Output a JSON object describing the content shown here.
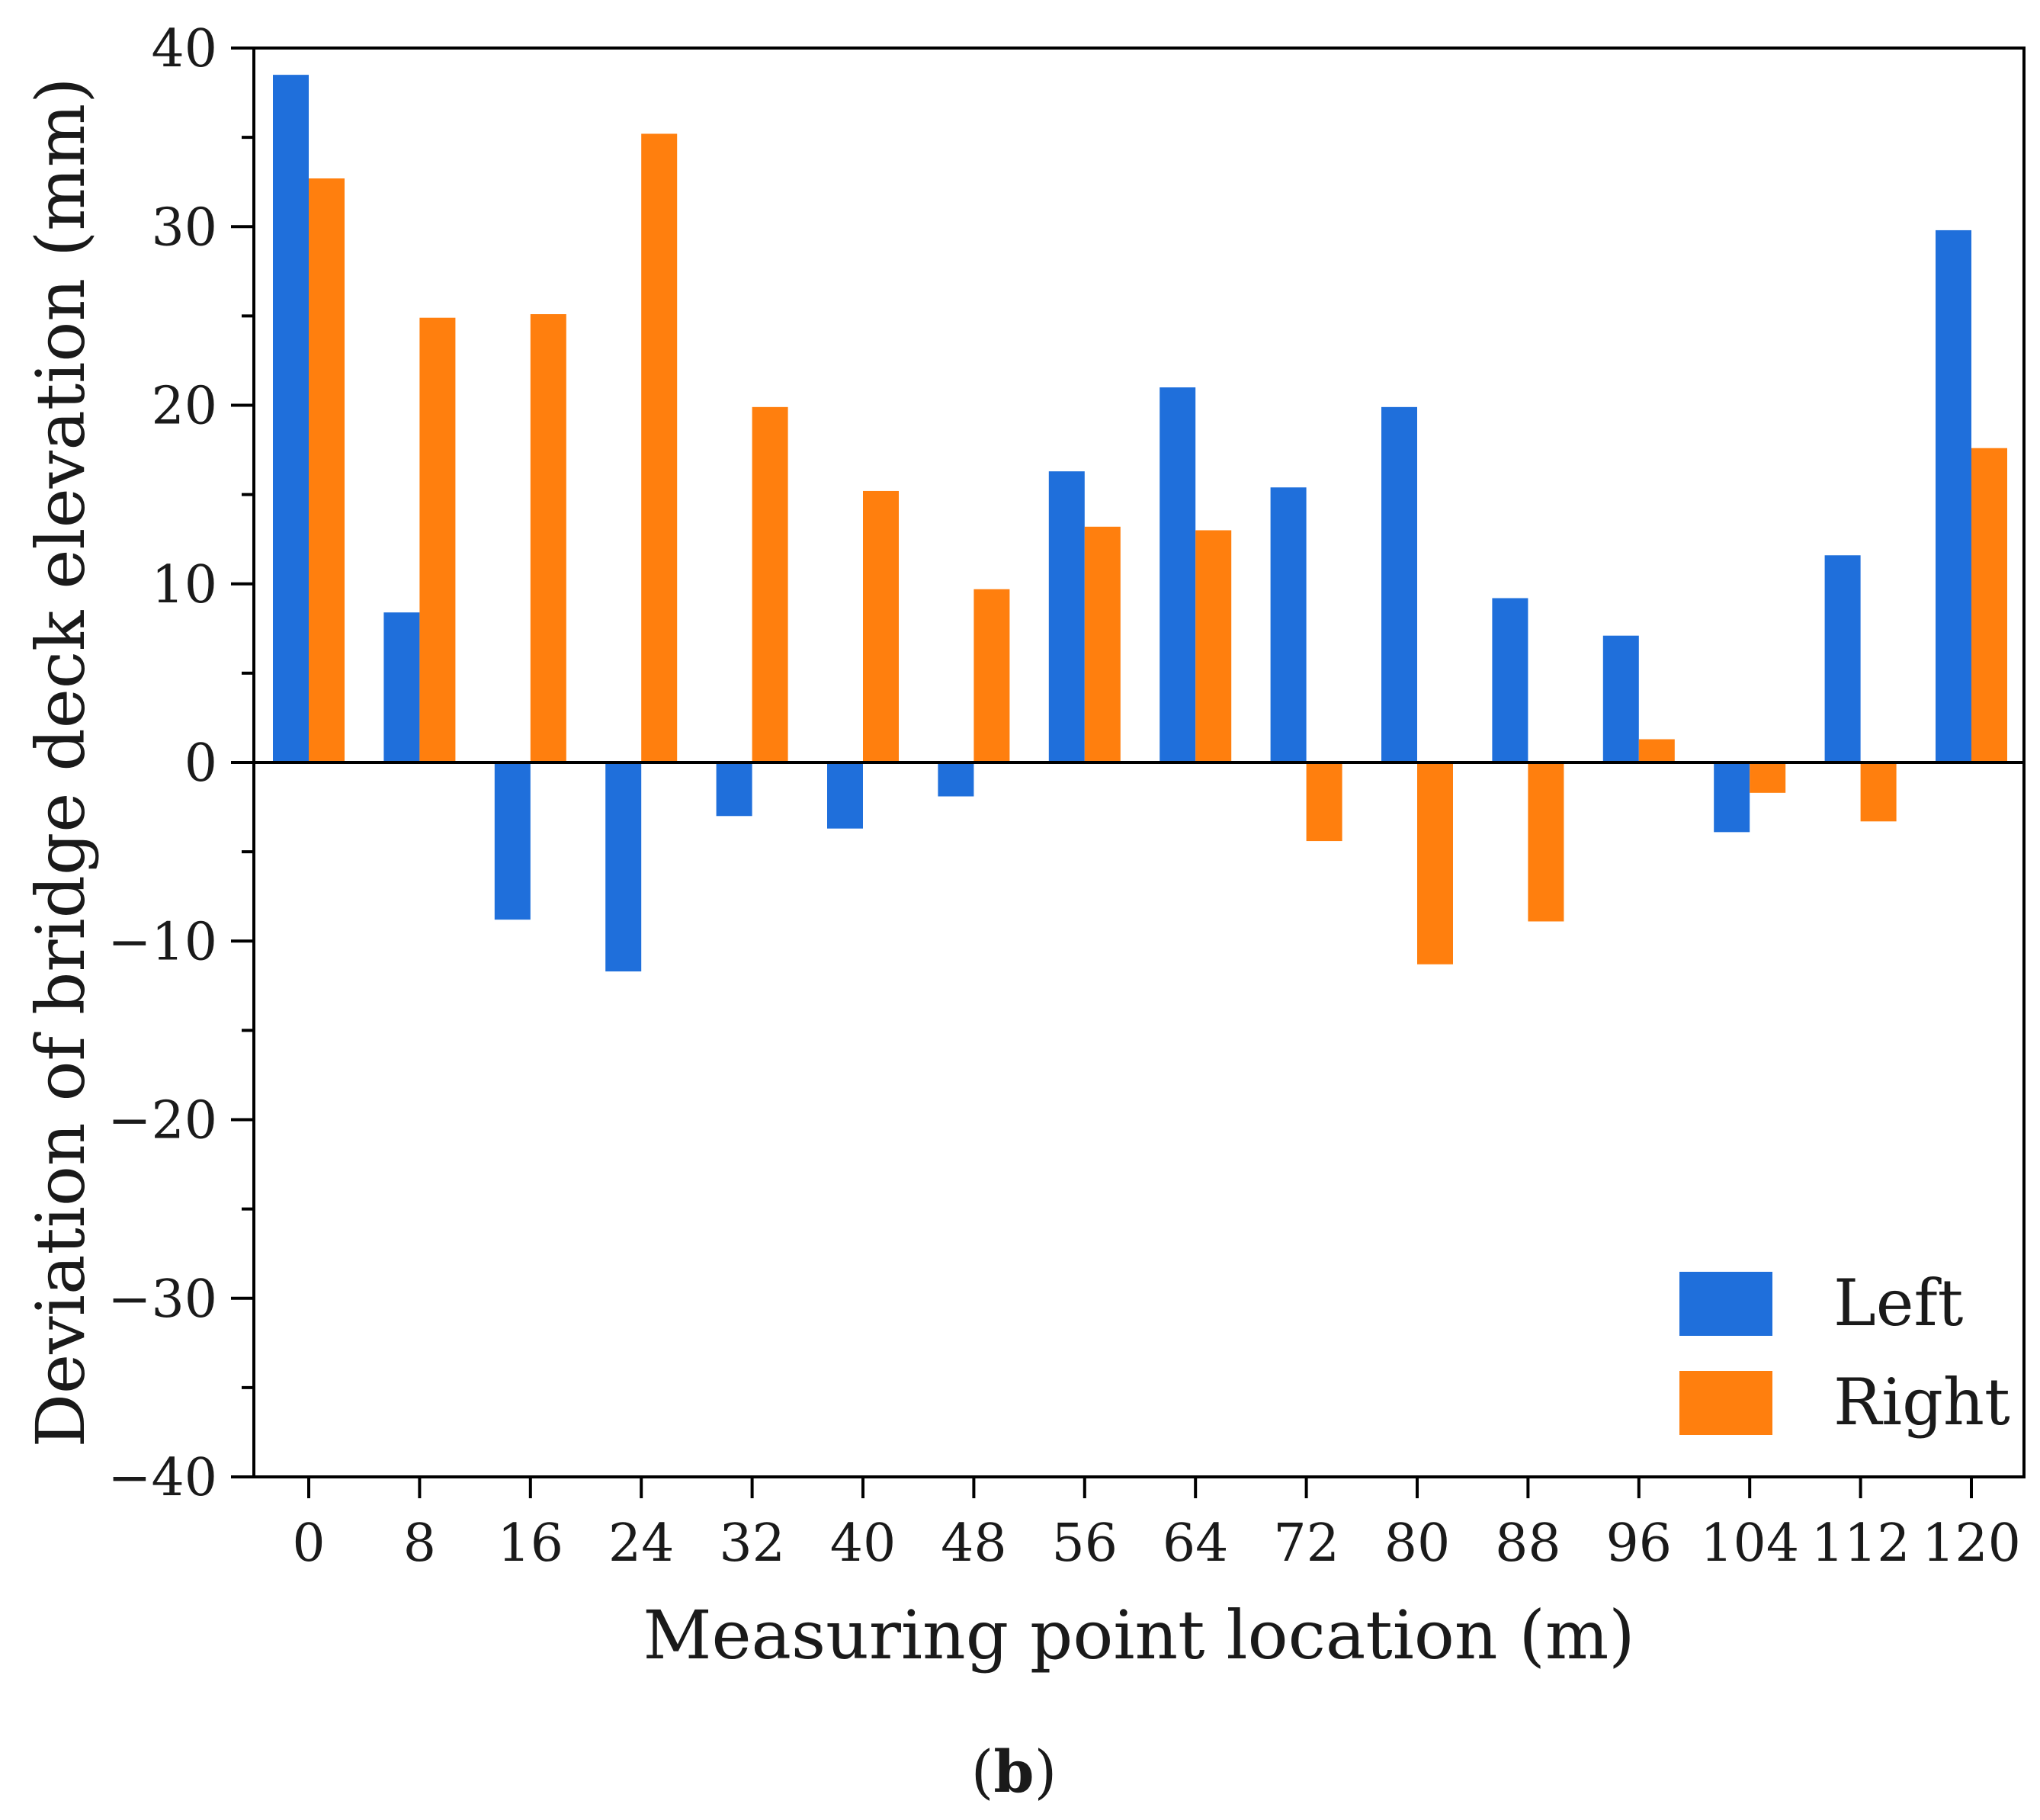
{
  "chart_data": {
    "type": "bar",
    "title": "",
    "xlabel": "Measuring point location (m)",
    "ylabel": "Deviation of bridge deck elevation (mm)",
    "categories": [
      "0",
      "8",
      "16",
      "24",
      "32",
      "40",
      "48",
      "56",
      "64",
      "72",
      "80",
      "88",
      "96",
      "104",
      "112",
      "120"
    ],
    "series": [
      {
        "name": "Left",
        "color": "#1f6fdb",
        "values": [
          38.5,
          8.4,
          -8.8,
          -11.7,
          -3.0,
          -3.7,
          -1.9,
          16.3,
          21.0,
          15.4,
          19.9,
          9.2,
          7.1,
          -3.9,
          11.6,
          29.8
        ]
      },
      {
        "name": "Right",
        "color": "#ff7f0e",
        "values": [
          32.7,
          24.9,
          25.1,
          35.2,
          19.9,
          15.2,
          9.7,
          13.2,
          13.0,
          -4.4,
          -11.3,
          -8.9,
          1.3,
          -1.7,
          -3.3,
          17.6
        ]
      }
    ],
    "ylim": [
      -40,
      40
    ],
    "yticks": [
      "40",
      "30",
      "20",
      "10",
      "0",
      "−10",
      "−20",
      "−30",
      "−40"
    ],
    "legend_position": "bottom-right",
    "grid": false
  },
  "panel_label": {
    "open": "(",
    "letter": "b",
    "close": ")"
  }
}
